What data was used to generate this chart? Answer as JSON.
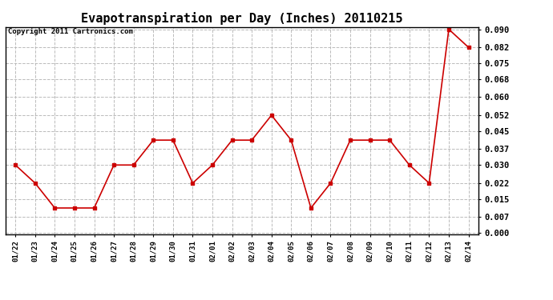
{
  "title": "Evapotranspiration per Day (Inches) 20110215",
  "copyright_text": "Copyright 2011 Cartronics.com",
  "x_labels": [
    "01/22",
    "01/23",
    "01/24",
    "01/25",
    "01/26",
    "01/27",
    "01/28",
    "01/29",
    "01/30",
    "01/31",
    "02/01",
    "02/02",
    "02/03",
    "02/04",
    "02/05",
    "02/06",
    "02/07",
    "02/08",
    "02/09",
    "02/10",
    "02/11",
    "02/12",
    "02/13",
    "02/14"
  ],
  "y_values": [
    0.03,
    0.022,
    0.011,
    0.011,
    0.011,
    0.03,
    0.03,
    0.041,
    0.041,
    0.022,
    0.03,
    0.041,
    0.041,
    0.052,
    0.041,
    0.011,
    0.022,
    0.041,
    0.041,
    0.041,
    0.03,
    0.022,
    0.09,
    0.082
  ],
  "line_color": "#cc0000",
  "marker": "s",
  "marker_size": 2.5,
  "line_width": 1.2,
  "ylim_min": 0.0,
  "ylim_max": 0.09,
  "yticks": [
    0.0,
    0.007,
    0.015,
    0.022,
    0.03,
    0.037,
    0.045,
    0.052,
    0.06,
    0.068,
    0.075,
    0.082,
    0.09
  ],
  "grid_color": "#bbbbbb",
  "grid_style": "--",
  "background_color": "#ffffff",
  "title_fontsize": 11,
  "copyright_fontsize": 6.5,
  "tick_fontsize": 7.5,
  "xtick_fontsize": 6.5
}
